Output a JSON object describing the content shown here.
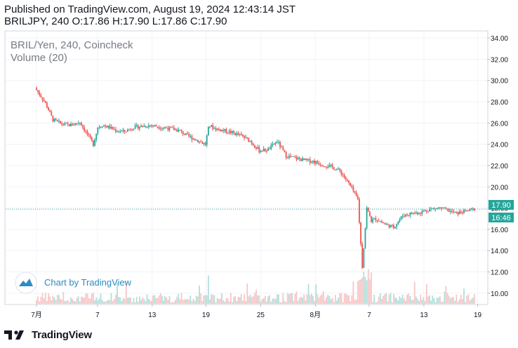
{
  "header": {
    "published_line": "Published on TradingView.com, August 19, 2024 12:43:14 JST",
    "ohlc_line": "BRILJPY, 240 O:17.86 H:17.90 L:17.86 C:17.90"
  },
  "legend": {
    "symbol": "BRIL/Yen, 240, Coincheck",
    "volume": "Volume (20)"
  },
  "watermark": {
    "text": "Chart by TradingView"
  },
  "price_badges": {
    "last": "17.90",
    "countdown": "16:46"
  },
  "footer": {
    "brand": "TradingView"
  },
  "colors": {
    "up": "#26a69a",
    "down": "#ef5350",
    "up_vol": "#b2dfdb",
    "down_vol": "#f7c6c7",
    "last_line": "#26a69a",
    "grid": "#f0f3fa"
  },
  "chart_data": {
    "type": "candlestick",
    "y_axis": {
      "ticks": [
        "34.00",
        "32.00",
        "30.00",
        "28.00",
        "26.00",
        "24.00",
        "22.00",
        "20.00",
        "18.00",
        "16.00",
        "14.00",
        "12.00",
        "10.00"
      ],
      "range": [
        9.0,
        34.6
      ],
      "position": "right"
    },
    "x_axis": {
      "ticks": [
        "7月",
        "7",
        "13",
        "19",
        "25",
        "8月",
        "7",
        "13",
        "19"
      ],
      "range_days": [
        0,
        49
      ]
    },
    "last_price": 17.9,
    "price_path": [
      [
        0,
        29.3
      ],
      [
        0.6,
        28.6
      ],
      [
        1.2,
        27.8
      ],
      [
        2,
        26.3
      ],
      [
        3,
        25.9
      ],
      [
        4,
        25.8
      ],
      [
        5,
        26.1
      ],
      [
        6.5,
        24.0
      ],
      [
        7,
        25.6
      ],
      [
        7.5,
        25.8
      ],
      [
        8.3,
        25.6
      ],
      [
        9,
        25.3
      ],
      [
        10,
        25.2
      ],
      [
        11,
        25.6
      ],
      [
        12,
        25.7
      ],
      [
        13,
        25.8
      ],
      [
        14,
        25.6
      ],
      [
        15,
        25.5
      ],
      [
        16,
        25.3
      ],
      [
        17,
        24.8
      ],
      [
        18,
        24.4
      ],
      [
        19,
        24.0
      ],
      [
        19.4,
        25.8
      ],
      [
        20,
        25.5
      ],
      [
        21,
        25.3
      ],
      [
        22,
        25.1
      ],
      [
        23,
        24.8
      ],
      [
        24,
        24.3
      ],
      [
        25,
        23.4
      ],
      [
        26,
        23.5
      ],
      [
        27,
        24.3
      ],
      [
        28,
        22.9
      ],
      [
        29,
        22.7
      ],
      [
        30,
        22.5
      ],
      [
        31,
        22.4
      ],
      [
        32,
        22.1
      ],
      [
        33,
        21.9
      ],
      [
        34,
        21.5
      ],
      [
        35,
        20.3
      ],
      [
        36,
        18.8
      ],
      [
        36.5,
        12.5
      ],
      [
        37,
        18.0
      ],
      [
        37.5,
        16.8
      ],
      [
        38,
        17.0
      ],
      [
        39,
        16.5
      ],
      [
        40,
        16.2
      ],
      [
        41,
        17.3
      ],
      [
        42,
        17.5
      ],
      [
        43,
        17.6
      ],
      [
        44,
        17.9
      ],
      [
        45,
        18.0
      ],
      [
        46,
        17.8
      ],
      [
        47,
        17.5
      ],
      [
        48,
        17.7
      ],
      [
        49,
        17.9
      ]
    ],
    "volume_note": "small volume bars along bottom, spike near 8/6"
  }
}
